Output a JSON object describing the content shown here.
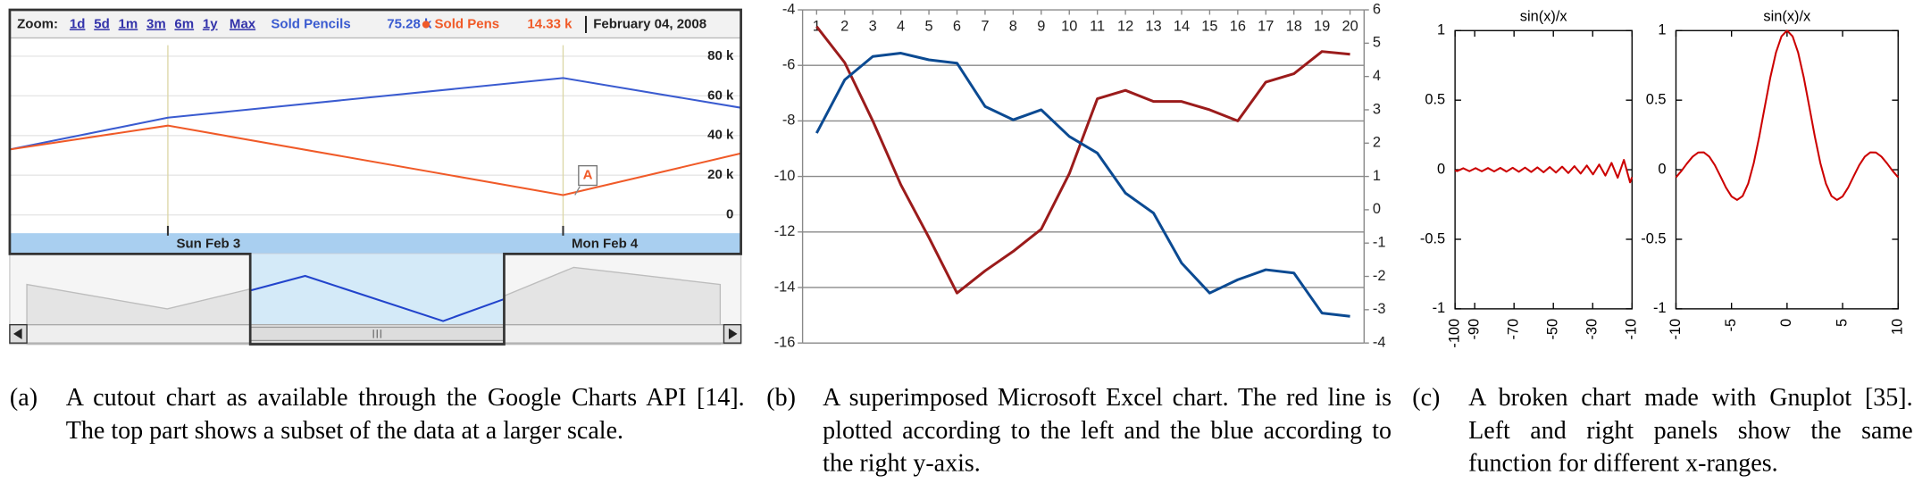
{
  "chart_data": [
    {
      "type": "line",
      "top_bar": {
        "zoom_label": "Zoom:",
        "zoom_options": [
          "1d",
          "5d",
          "1m",
          "3m",
          "6m",
          "1y",
          "Max"
        ],
        "date": "February 04, 2008"
      },
      "x": [
        2.6,
        3,
        4,
        4.45
      ],
      "series": [
        {
          "name": "Sold Pencils",
          "current": "75.28 k",
          "color": "#3a5bd0",
          "values": [
            33,
            49,
            69,
            54
          ]
        },
        {
          "name": "Sold Pens",
          "current": "14.33 k",
          "color": "#f05a28",
          "values": [
            33,
            45,
            10,
            31
          ]
        }
      ],
      "xlim": [
        2.6,
        4.45
      ],
      "xticks": [
        {
          "value": 3,
          "label": "Sun Feb 3"
        },
        {
          "value": 4,
          "label": "Mon Feb 4"
        }
      ],
      "ylim": [
        -8.6,
        85.5
      ],
      "yticks": [
        0,
        {
          "value": 20,
          "label": "20 k"
        },
        {
          "value": 40,
          "label": "40 k"
        },
        {
          "value": 60,
          "label": "60 k"
        },
        {
          "value": 80,
          "label": "80 k"
        }
      ],
      "annotations": [
        {
          "text": "A",
          "x": 4.03,
          "y": 10
        }
      ],
      "grid": true
    },
    {
      "type": "line",
      "x": [
        1,
        2,
        3,
        4,
        5,
        6,
        7,
        8,
        9,
        10,
        11,
        12,
        13,
        14,
        15,
        16,
        17,
        18,
        19,
        20
      ],
      "xlim": [
        0.5,
        20.5
      ],
      "xticks": [
        1,
        2,
        3,
        4,
        5,
        6,
        7,
        8,
        9,
        10,
        11,
        12,
        13,
        14,
        15,
        16,
        17,
        18,
        19,
        20
      ],
      "ylim": [
        -16,
        -4
      ],
      "yticks": [
        -16,
        -14,
        -12,
        -10,
        -8,
        -6,
        -4
      ],
      "y2lim": [
        -4,
        6
      ],
      "y2ticks": [
        -4,
        -3,
        -2,
        -1,
        0,
        1,
        2,
        3,
        4,
        5,
        6
      ],
      "grid": true,
      "series": [
        {
          "color": "#9b1b1b",
          "values": [
            -4.6,
            -5.9,
            -8.0,
            -10.3,
            -12.2,
            -14.2,
            -13.4,
            -12.7,
            -11.9,
            -9.9,
            -7.2,
            -6.9,
            -7.3,
            -7.3,
            -7.6,
            -8.0,
            -6.6,
            -6.3,
            -5.5,
            -5.6
          ]
        },
        {
          "color": "#0b4a92",
          "axis": "y2",
          "values": [
            2.3,
            3.9,
            4.6,
            4.7,
            4.5,
            4.4,
            3.1,
            2.7,
            3.0,
            2.2,
            1.7,
            0.5,
            -0.1,
            -1.6,
            -2.5,
            -2.1,
            -1.8,
            -1.9,
            -3.1,
            -3.2
          ]
        }
      ]
    },
    {
      "type": "line",
      "title": "sin(x)/x",
      "x": [
        -100,
        -98.96,
        -95.82,
        -92.68,
        -89.54,
        -86.39,
        -83.25,
        -80.11,
        -76.97,
        -73.83,
        -70.69,
        -67.54,
        -64.4,
        -61.26,
        -58.12,
        -54.98,
        -51.84,
        -48.69,
        -45.55,
        -42.41,
        -39.27,
        -36.13,
        -32.99,
        -29.85,
        -26.7,
        -23.56,
        -20.42,
        -17.28,
        -14.14,
        -11.0,
        -10
      ],
      "series": [
        {
          "color": "#cc0000",
          "values": [
            -0.0051,
            -0.0101,
            0.0104,
            -0.0108,
            0.0112,
            -0.0116,
            0.012,
            -0.0125,
            0.013,
            -0.0135,
            0.0141,
            -0.0148,
            0.0155,
            -0.0163,
            0.0172,
            -0.0182,
            0.0193,
            -0.0205,
            0.022,
            -0.0236,
            0.0255,
            -0.0277,
            0.0303,
            -0.0335,
            0.0374,
            -0.0424,
            0.049,
            -0.0579,
            0.0707,
            -0.0909,
            -0.0544
          ]
        }
      ],
      "xlim": [
        -100,
        -10
      ],
      "xticks": [
        -100,
        -90,
        -70,
        -50,
        -30,
        -10
      ],
      "ylim": [
        -1,
        1
      ],
      "yticks": [
        -1,
        -0.5,
        0,
        0.5,
        1
      ]
    },
    {
      "type": "line",
      "title": "sin(x)/x",
      "x": [
        -10,
        -9.5,
        -9,
        -8.5,
        -8,
        -7.5,
        -7,
        -6.5,
        -6,
        -5.5,
        -5,
        -4.5,
        -4,
        -3.5,
        -3,
        -2.5,
        -2,
        -1.5,
        -1,
        -0.5,
        0,
        0.5,
        1,
        1.5,
        2,
        2.5,
        3,
        3.5,
        4,
        4.5,
        5,
        5.5,
        6,
        6.5,
        7,
        7.5,
        8,
        8.5,
        9,
        9.5,
        10
      ],
      "series": [
        {
          "color": "#cc0000",
          "values": [
            -0.0544,
            -0.0079,
            0.0458,
            0.0939,
            0.1237,
            0.1251,
            0.0939,
            0.0331,
            -0.0466,
            -0.1283,
            -0.1918,
            -0.2172,
            -0.1892,
            -0.1002,
            0.047,
            0.2394,
            0.4546,
            0.665,
            0.8415,
            0.9589,
            1,
            0.9589,
            0.8415,
            0.665,
            0.4546,
            0.2394,
            0.047,
            -0.1002,
            -0.1892,
            -0.2172,
            -0.1918,
            -0.1283,
            -0.0466,
            0.0331,
            0.0939,
            0.1251,
            0.1237,
            0.0939,
            0.0458,
            -0.0079,
            -0.0544
          ]
        }
      ],
      "xlim": [
        -10,
        10
      ],
      "xticks": [
        -10,
        -5,
        0,
        5,
        10
      ],
      "ylim": [
        -1,
        1
      ],
      "yticks": [
        -1,
        -0.5,
        0,
        0.5,
        1
      ]
    }
  ],
  "captions": [
    {
      "label": "(a)",
      "text": "A cutout chart as available through the Google Charts API [14]. The top part shows a subset of the data at a larger scale."
    },
    {
      "label": "(b)",
      "text": "A superimposed Microsoft Excel chart. The red line is plotted according to the left and the blue according to the right y-axis."
    },
    {
      "label": "(c)",
      "text": "A broken chart made with Gnuplot [35]. Left and right panels show the same function for different x-ranges."
    }
  ]
}
